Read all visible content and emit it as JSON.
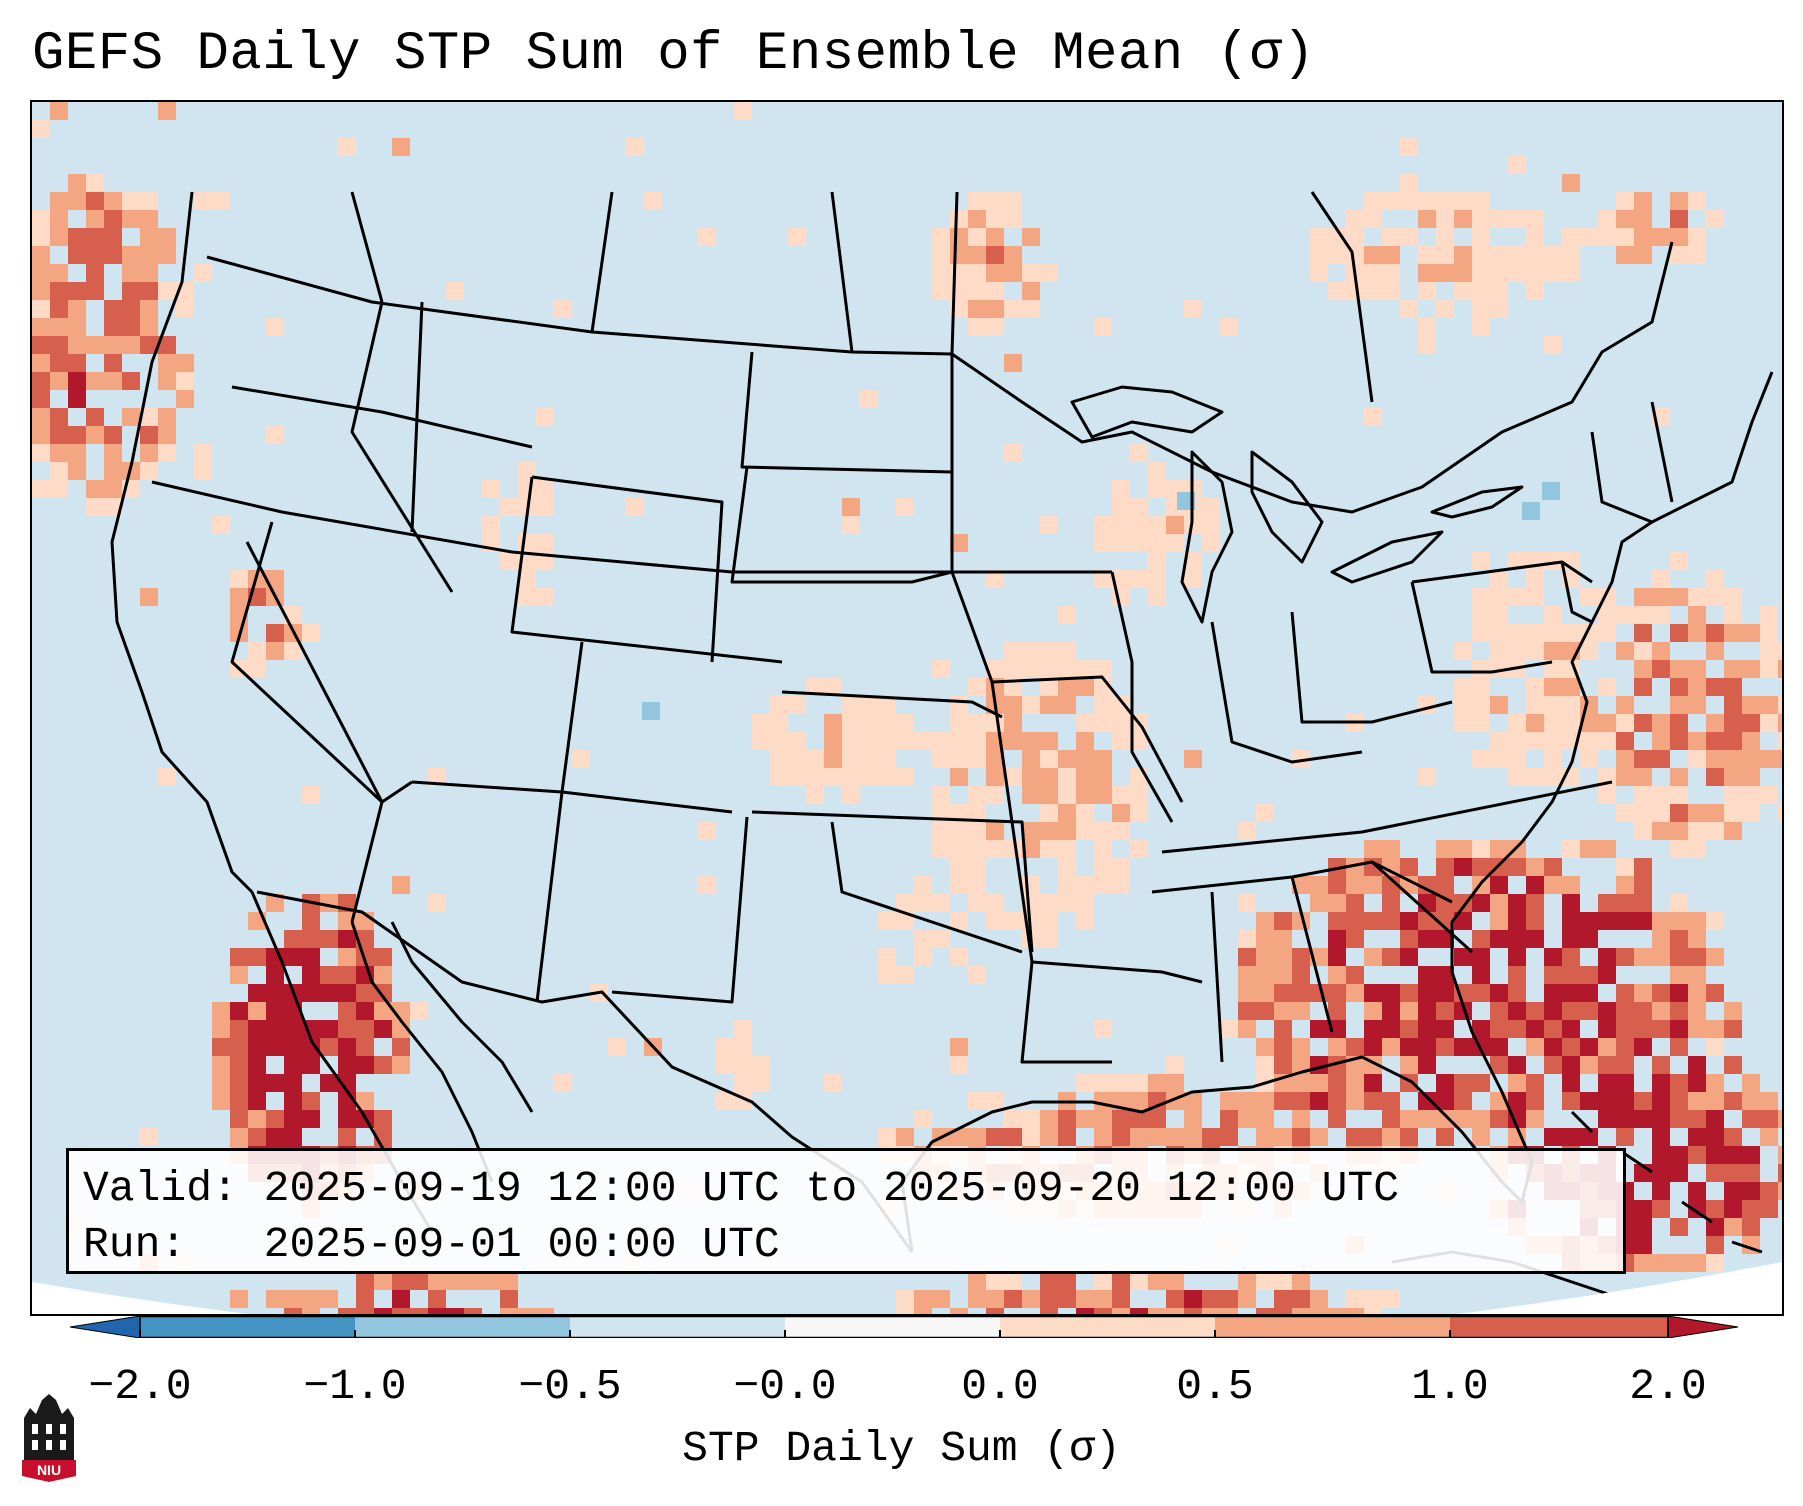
{
  "title": "GEFS Daily STP Sum of Ensemble Mean (σ)",
  "info": {
    "valid_label": "Valid:",
    "valid_value": "2025-09-19 12:00 UTC to 2025-09-20 12:00 UTC",
    "run_label": "Run:",
    "run_value": "2025-09-01 00:00 UTC"
  },
  "colorbar": {
    "label": "STP Daily Sum (σ)",
    "ticks": [
      "−2.0",
      "−1.0",
      "−0.5",
      "−0.0",
      "0.0",
      "0.5",
      "1.0",
      "2.0"
    ],
    "bins": [
      {
        "range": "< -2.0",
        "color": "#2166ac"
      },
      {
        "range": "-2.0 to -1.0",
        "color": "#4393c3"
      },
      {
        "range": "-1.0 to -0.5",
        "color": "#92c5de"
      },
      {
        "range": "-0.5 to -0.0",
        "color": "#d1e5f0"
      },
      {
        "range": "-0.0 to 0.0",
        "color": "#f7f7f7"
      },
      {
        "range": "0.0 to 0.5",
        "color": "#fddbc7"
      },
      {
        "range": "0.5 to 1.0",
        "color": "#f4a582"
      },
      {
        "range": "1.0 to 2.0",
        "color": "#d6604d"
      },
      {
        "range": "> 2.0",
        "color": "#b2182b"
      }
    ]
  },
  "map": {
    "background_color": "#d1e5f0",
    "region": "Contiguous United States, southern Canada, northern Mexico, Gulf of Mexico, western Atlantic",
    "highlights": [
      {
        "area": "Pacific Northwest coast offshore",
        "level": "0.5 to 2.0"
      },
      {
        "area": "Baja California and Gulf of California",
        "level": "> 2.0"
      },
      {
        "area": "Western Atlantic off Southeast US",
        "level": "1.0 to > 2.0"
      },
      {
        "area": "Bahamas / Caribbean",
        "level": "> 2.0"
      },
      {
        "area": "Northern Gulf of Mexico",
        "level": "0.5 to > 2.0"
      },
      {
        "area": "Mid-Mississippi Valley",
        "level": "0.0 to 1.0"
      }
    ]
  },
  "logo": {
    "text": "NIU",
    "color": "#c8102e"
  }
}
